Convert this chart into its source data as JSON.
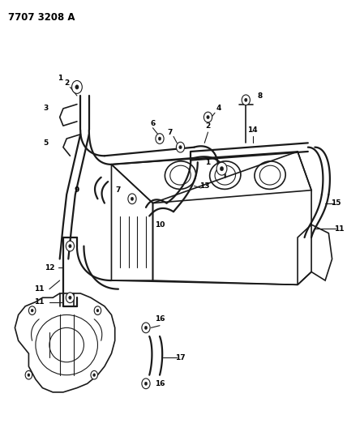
{
  "title": "7707 3208 A",
  "bg_color": "#ffffff",
  "line_color": "#1a1a1a",
  "label_color": "#000000",
  "title_fontsize": 8.5,
  "label_fontsize": 7,
  "fig_width": 4.28,
  "fig_height": 5.33,
  "dpi": 100
}
